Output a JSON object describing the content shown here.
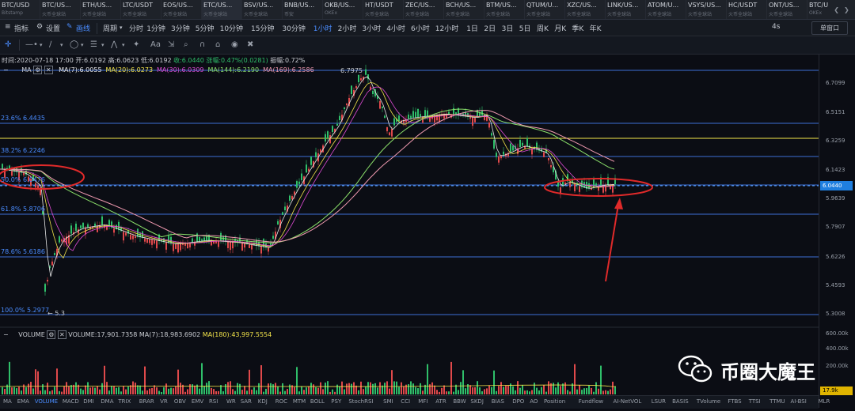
{
  "tickers": [
    {
      "symbol": "BTC/USD",
      "source": "Bitstamp"
    },
    {
      "symbol": "BTC/US...",
      "source": "火币全球站"
    },
    {
      "symbol": "ETH/US...",
      "source": "火币全球站"
    },
    {
      "symbol": "LTC/USDT",
      "source": "火币全球站"
    },
    {
      "symbol": "EOS/US...",
      "source": "火币全球站"
    },
    {
      "symbol": "ETC/US...",
      "source": "火币全球站",
      "active": true
    },
    {
      "symbol": "BSV/US...",
      "source": "火币全球站"
    },
    {
      "symbol": "BNB/US...",
      "source": "币安"
    },
    {
      "symbol": "OKB/US...",
      "source": "OKEx"
    },
    {
      "symbol": "HT/USDT",
      "source": "火币全球站"
    },
    {
      "symbol": "ZEC/US...",
      "source": "火币全球站"
    },
    {
      "symbol": "BCH/US...",
      "source": "火币全球站"
    },
    {
      "symbol": "BTM/US...",
      "source": "火币全球站"
    },
    {
      "symbol": "QTUM/U...",
      "source": "火币全球站"
    },
    {
      "symbol": "XZC/US...",
      "source": "火币全球站"
    },
    {
      "symbol": "LINK/US...",
      "source": "火币全球站"
    },
    {
      "symbol": "ATOM/U...",
      "source": "火币全球站"
    },
    {
      "symbol": "VSYS/US...",
      "source": "火币全球站"
    },
    {
      "symbol": "HC/USDT",
      "source": "火币全球站"
    },
    {
      "symbol": "ONT/US...",
      "source": "火币全球站"
    },
    {
      "symbol": "BTC/USDT",
      "source": "OKEx"
    }
  ],
  "toolbar1": {
    "indicators": "指标",
    "settings": "设置",
    "drawing": "画线",
    "period": "周期",
    "timeframes": [
      "分时",
      "1分钟",
      "3分钟",
      "5分钟",
      "10分钟",
      "15分钟",
      "30分钟",
      "1小时",
      "2小时",
      "3小时",
      "4小时",
      "6小时",
      "12小时",
      "1日",
      "2日",
      "3日",
      "5日",
      "周K",
      "月K",
      "季K",
      "年K"
    ],
    "active_timeframe": "1小时",
    "interval": "4s",
    "window_button": "单窗口"
  },
  "ohlc": {
    "time": "时间:2020-07-18 17:00",
    "open_label": "开:",
    "open": "6.0192",
    "high_label": "高:",
    "high": "6.0623",
    "low_label": "低:",
    "low": "6.0192",
    "close_label": "收:",
    "close": "6.0440",
    "change_label": "涨幅:",
    "change": "0.47%(0.0281)",
    "amplitude_label": "振幅:",
    "amplitude": "0.72%"
  },
  "ma_legend": {
    "name": "MA",
    "items": [
      {
        "text": "MA(7):6.0055",
        "color": "#e8e8e8"
      },
      {
        "text": "MA(20):6.0273",
        "color": "#f2e34a"
      },
      {
        "text": "MA(30):6.0309",
        "color": "#e04bd6"
      },
      {
        "text": "MA(144):6.2190",
        "color": "#8be06a"
      },
      {
        "text": "MA(169):6.2586",
        "color": "#f09ab0"
      }
    ]
  },
  "fib_labels": {
    "l236": "23.6% 6.4435",
    "l382": "38.2% 6.2246",
    "l500": "50.0% 6.0476",
    "l618": "61.8% 5.8706",
    "l786": "78.6% 5.6186",
    "l100": "100.0% 5.2977"
  },
  "peak_label": "6.7975",
  "low_label": "5.3",
  "price_axis": [
    "6.7099",
    "6.5151",
    "6.3259",
    "6.1423",
    "5.9639",
    "5.7907",
    "5.6226",
    "5.4593",
    "5.3008"
  ],
  "current_price": "6.0440",
  "volume_legend": {
    "name": "VOLUME",
    "vol": "VOLUME:17,901.7358",
    "ma7": "MA(7):18,983.6902",
    "ma180": "MA(180):43,997.5554"
  },
  "volume_axis": [
    "600.00k",
    "400.00k",
    "200.00k"
  ],
  "current_volume": "17.9k",
  "indicator_tabs": [
    "MA",
    "EMA",
    "VOLUME",
    "MACD",
    "DMI",
    "DMA",
    "TRIX",
    "BRAR",
    "VR",
    "OBV",
    "EMV",
    "RSI",
    "WR",
    "SAR",
    "KDJ",
    "ROC",
    "MTM",
    "BOLL",
    "PSY",
    "StochRSI",
    "SMI",
    "CCI",
    "MFI",
    "ATR",
    "BBW",
    "SKDJ",
    "BIAS",
    "DPO",
    "AO",
    "Position",
    "Fundflow",
    "AI-NetVOL",
    "LSUR",
    "BASIS",
    "TVolume",
    "FTBS",
    "TTSI",
    "TTMU",
    "AI-BSI",
    "MLR"
  ],
  "active_indicator": "VOLUME",
  "watermark": "币圈大魔王",
  "colors": {
    "up": "#2fbf6a",
    "down": "#e0494b",
    "accent": "#4a8cff",
    "fib": "#3d6ed6",
    "highlight": "#f5e94a",
    "circle": "#e02a2a"
  }
}
